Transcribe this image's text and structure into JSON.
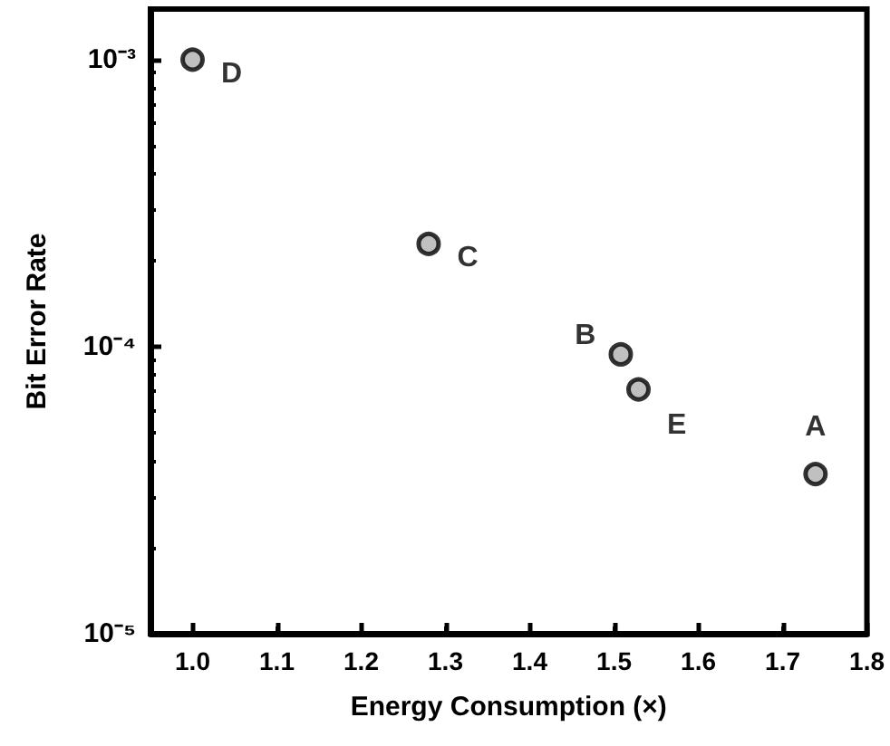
{
  "chart_data": {
    "type": "scatter",
    "xlabel": "Energy Consumption (×)",
    "ylabel": "Bit Error Rate",
    "x": [
      1.0,
      1.28,
      1.508,
      1.529,
      1.739
    ],
    "series": [
      {
        "color": "#b0b0b0",
        "values": [
          0.001,
          0.000228,
          9.4e-05,
          7.1e-05,
          3.6e-05
        ]
      }
    ],
    "annotations": [
      {
        "text": "D",
        "x": 1.0,
        "y": 0.001
      },
      {
        "text": "C",
        "x": 1.28,
        "y": 0.000228
      },
      {
        "text": "B",
        "x": 1.508,
        "y": 9.4e-05
      },
      {
        "text": "E",
        "x": 1.529,
        "y": 7.1e-05
      },
      {
        "text": "A",
        "x": 1.739,
        "y": 3.6e-05
      }
    ],
    "xlim": [
      0.95,
      1.8
    ],
    "xticks": [
      "1.0",
      1.1,
      1.2,
      1.3,
      1.4,
      1.5,
      1.6,
      1.7,
      1.8
    ],
    "ylim": [
      1e-05,
      0.0015
    ],
    "yticks": [
      {
        "value": 0.001,
        "label": "10⁻³"
      },
      {
        "value": 0.0001,
        "label": "10⁻⁴"
      },
      {
        "value": 1e-05,
        "label": "10⁻⁵"
      }
    ],
    "log": "y",
    "grid": false,
    "marker": "circle"
  }
}
